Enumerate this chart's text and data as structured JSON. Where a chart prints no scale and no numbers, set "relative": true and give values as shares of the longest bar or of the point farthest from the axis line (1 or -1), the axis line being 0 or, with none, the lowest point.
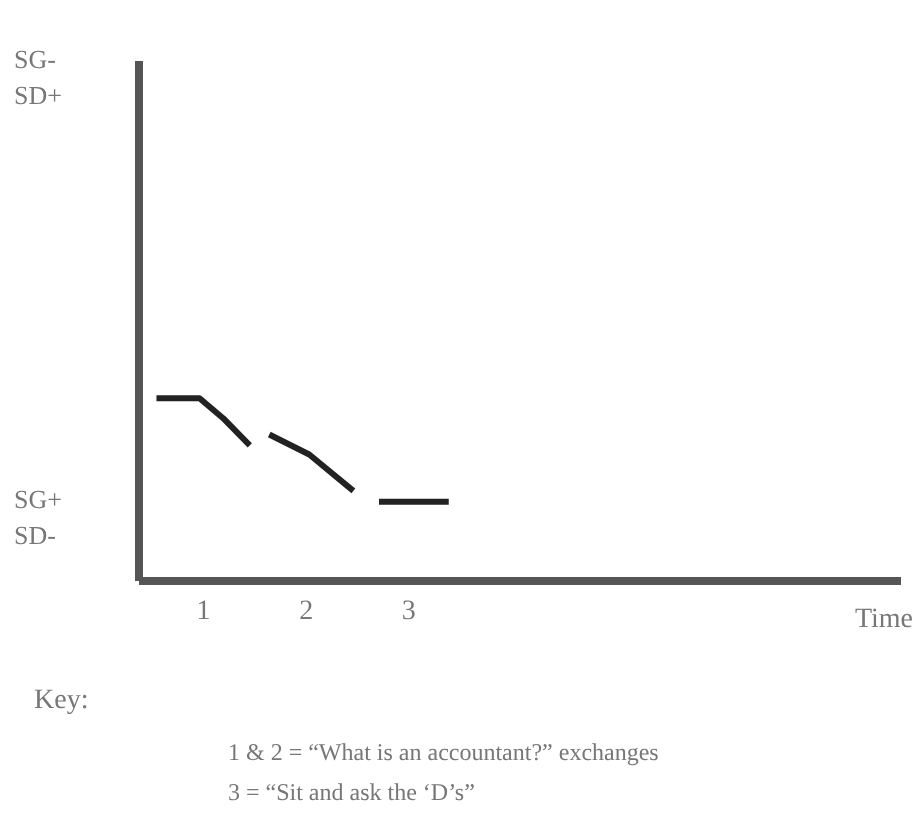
{
  "chart_data": {
    "type": "line",
    "xlabel": "Time",
    "relative": true,
    "series": [
      {
        "color": "#222222",
        "x": [
          0.55,
          0.97,
          1.2,
          1.46
        ],
        "values": [
          1.0,
          1.0,
          0.89,
          0.74
        ]
      },
      {
        "color": "#222222",
        "x": [
          1.65,
          2.04,
          2.47
        ],
        "values": [
          0.8,
          0.69,
          0.49
        ]
      },
      {
        "color": "#222222",
        "x": [
          2.72,
          3.4
        ],
        "values": [
          0.43,
          0.43
        ]
      }
    ],
    "xlim": [
      0.37,
      7.8
    ],
    "xticks": [
      1,
      2,
      3
    ],
    "grid": false,
    "legend": false,
    "line_style": "solid",
    "marker": "none",
    "annotations": [
      "SG-\nSD+",
      "SG+\nSD-",
      "Key:",
      "1 & 2 = “What is an accountant?” exchanges",
      "3 = “Sit and ask the ‘D’s”"
    ]
  }
}
